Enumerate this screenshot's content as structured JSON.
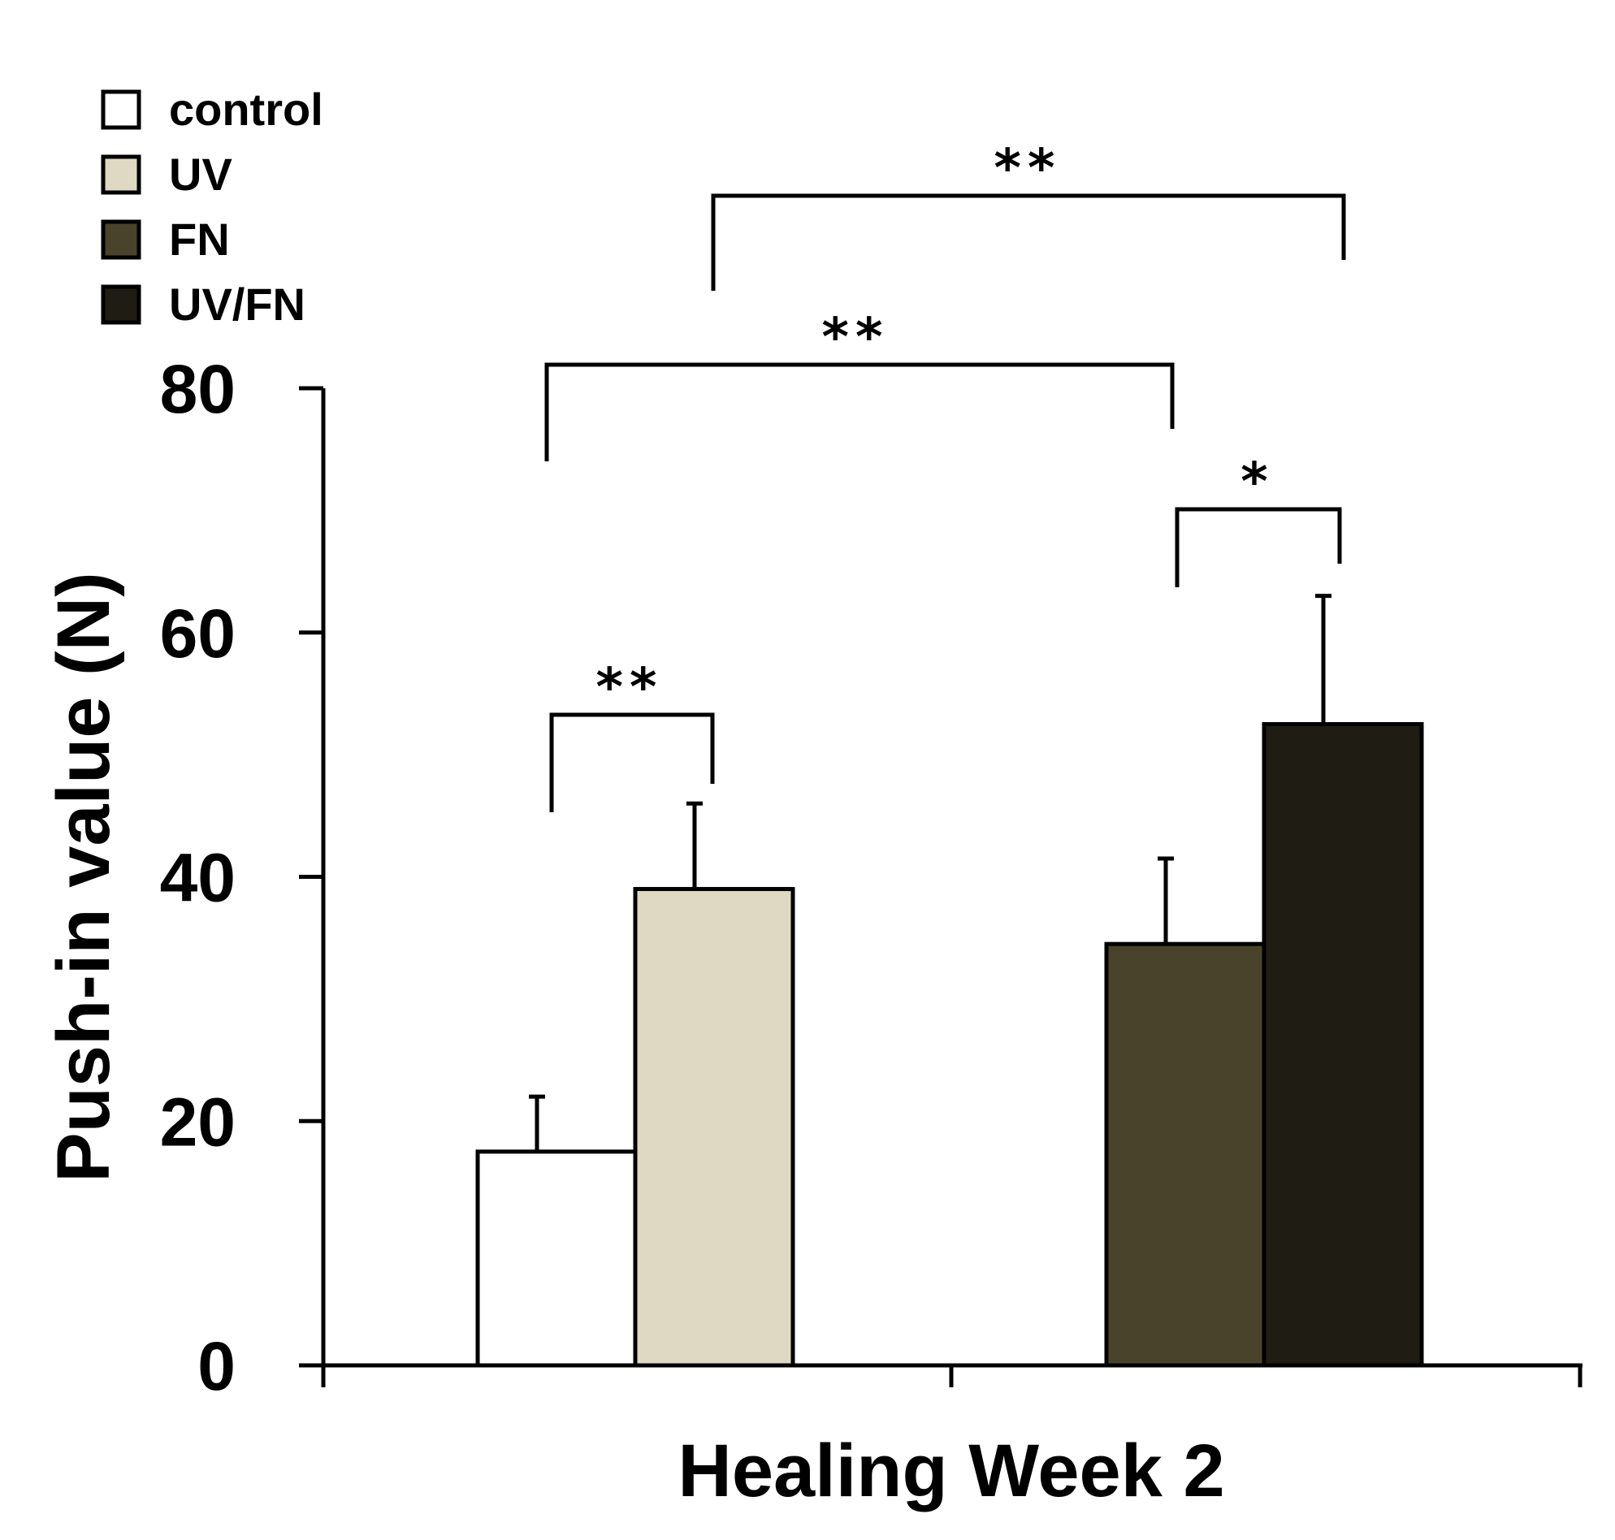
{
  "chart_data": {
    "type": "bar",
    "title": "",
    "xlabel": "Healing Week 2",
    "ylabel": "Push-in value (N)",
    "ylim": [
      0,
      80
    ],
    "yticks": [
      0,
      20,
      40,
      60,
      80
    ],
    "grid": false,
    "legend_position": "top-left",
    "series": [
      {
        "name": "control",
        "value": 17.5,
        "error": 4.5,
        "color": "#ffffff"
      },
      {
        "name": "UV",
        "value": 39,
        "error": 7,
        "color": "#dfd9c3"
      },
      {
        "name": "FN",
        "value": 34.5,
        "error": 7,
        "color": "#4a432b"
      },
      {
        "name": "UV/FN",
        "value": 52.5,
        "error": 10.5,
        "color": "#1f1d13"
      }
    ],
    "significance": [
      {
        "from": "control",
        "to": "UV",
        "label": "**"
      },
      {
        "from": "FN",
        "to": "UV/FN",
        "label": "*"
      },
      {
        "from": "control",
        "to": "FN",
        "label": "**"
      },
      {
        "from": "UV",
        "to": "UV/FN",
        "label": "**"
      }
    ]
  }
}
